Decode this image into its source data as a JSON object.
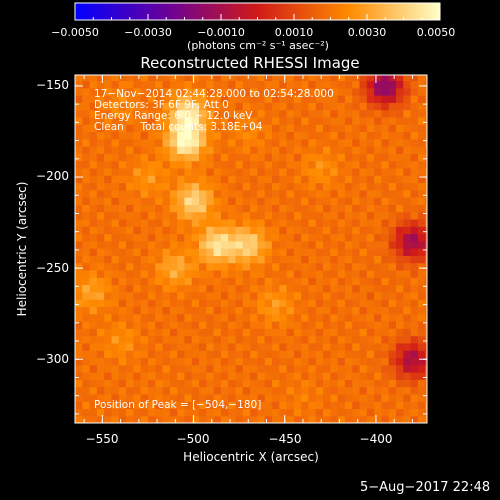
{
  "chart_data": {
    "type": "heatmap",
    "title": "Reconstructed RHESSI Image",
    "xlabel": "Heliocentric X (arcsec)",
    "ylabel": "Heliocentric Y (arcsec)",
    "xlim": [
      -565,
      -372
    ],
    "ylim": [
      -335,
      -144
    ],
    "x_ticks": [
      {
        "value": -550,
        "label": "−550"
      },
      {
        "value": -500,
        "label": "−500"
      },
      {
        "value": -450,
        "label": "−450"
      },
      {
        "value": -400,
        "label": "−400"
      }
    ],
    "y_ticks": [
      {
        "value": -150,
        "label": "−150"
      },
      {
        "value": -200,
        "label": "−200"
      },
      {
        "value": -250,
        "label": "−250"
      },
      {
        "value": -300,
        "label": "−300"
      }
    ],
    "colorbar": {
      "range": [
        -0.005,
        0.005
      ],
      "ticks": [
        {
          "value": -0.005,
          "label": "−0.0050"
        },
        {
          "value": -0.003,
          "label": "−0.0030"
        },
        {
          "value": -0.001,
          "label": "−0.0010"
        },
        {
          "value": 0.001,
          "label": "0.0010"
        },
        {
          "value": 0.003,
          "label": "0.0030"
        },
        {
          "value": 0.005,
          "label": "0.0050"
        }
      ],
      "units_label": "(photons cm⁻² s⁻¹ asec⁻²)",
      "colors": [
        "#0000ff",
        "#6a009a",
        "#d01a18",
        "#ff8a00",
        "#ffffc8"
      ]
    },
    "annotations": [
      "17−Nov−2014 02:44:28.000 to 02:54:28.000",
      "Detectors: 3F 6F 9F, Att 0",
      "Energy Range: 6.0 − 12.0 keV",
      "Clean     Total counts: 3.18E+04"
    ],
    "peak_label": "Position of Peak = [−504,−180]",
    "peak_position": [
      -504,
      -180
    ],
    "sources": [
      {
        "x": -504,
        "y": -180,
        "value": 0.005
      },
      {
        "x": -503,
        "y": -165,
        "value": 0.0046
      },
      {
        "x": -500,
        "y": -213,
        "value": 0.0042
      },
      {
        "x": -487,
        "y": -237,
        "value": 0.0044
      },
      {
        "x": -470,
        "y": -237,
        "value": 0.004
      },
      {
        "x": -510,
        "y": -250,
        "value": 0.0032
      },
      {
        "x": -556,
        "y": -263,
        "value": 0.003
      },
      {
        "x": -540,
        "y": -290,
        "value": 0.0026
      },
      {
        "x": -455,
        "y": -270,
        "value": 0.0028
      },
      {
        "x": -430,
        "y": -195,
        "value": 0.0026
      },
      {
        "x": -525,
        "y": -200,
        "value": 0.0027
      },
      {
        "x": -540,
        "y": -160,
        "value": 0.0024
      },
      {
        "x": -470,
        "y": -175,
        "value": 0.0024
      },
      {
        "x": -440,
        "y": -320,
        "value": 0.0022
      },
      {
        "x": -520,
        "y": -315,
        "value": 0.002
      },
      {
        "x": -400,
        "y": -260,
        "value": 0.0018
      },
      {
        "x": -395,
        "y": -150,
        "value": -0.0018
      },
      {
        "x": -380,
        "y": -235,
        "value": -0.0012
      },
      {
        "x": -380,
        "y": -300,
        "value": -0.001
      }
    ],
    "background_value": 0.0019
  },
  "timestamp": "5−Aug−2017 22:48"
}
